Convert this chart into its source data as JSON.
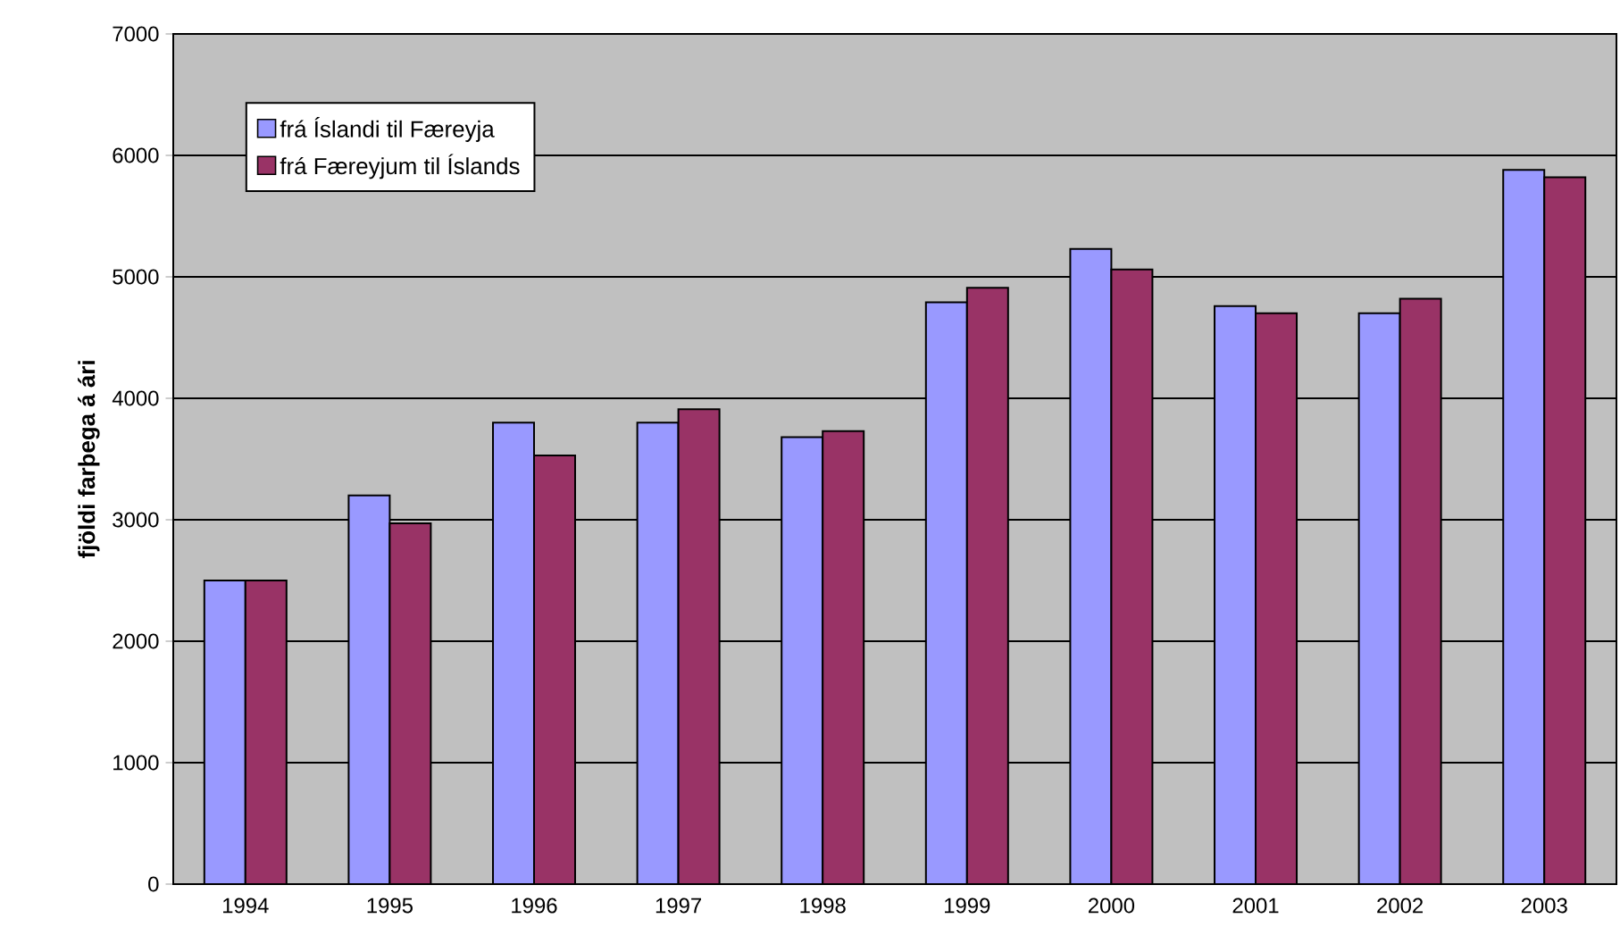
{
  "chart_data": {
    "type": "bar",
    "ylabel": "fjöldi farþega á ári",
    "categories": [
      "1994",
      "1995",
      "1996",
      "1997",
      "1998",
      "1999",
      "2000",
      "2001",
      "2002",
      "2003"
    ],
    "series": [
      {
        "name": "frá Íslandi til Færeyja",
        "color": "#9999ff",
        "values": [
          2500,
          3200,
          3800,
          3800,
          3680,
          4790,
          5230,
          4760,
          4700,
          5880
        ]
      },
      {
        "name": "frá Færeyjum til Íslands",
        "color": "#993366",
        "values": [
          2500,
          2970,
          3530,
          3910,
          3730,
          4910,
          5060,
          4700,
          4820,
          5820
        ]
      }
    ],
    "ylim": [
      0,
      7000
    ],
    "yticks": [
      0,
      1000,
      2000,
      3000,
      4000,
      5000,
      6000,
      7000
    ],
    "grid": "y",
    "legend": "top left"
  }
}
